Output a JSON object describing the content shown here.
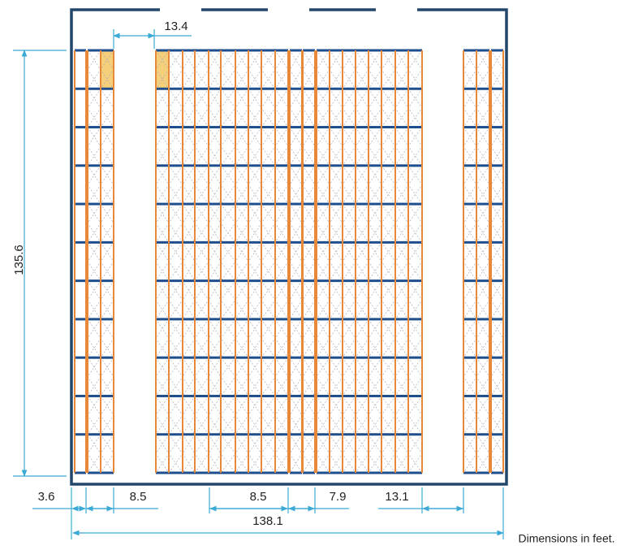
{
  "dimensions": {
    "top_aisle": "13.4",
    "height": "135.6",
    "bottom": [
      "3.6",
      "8.5",
      "8.5",
      "7.9",
      "13.1"
    ],
    "total_width": "138.1"
  },
  "note": "Dimensions in feet."
}
